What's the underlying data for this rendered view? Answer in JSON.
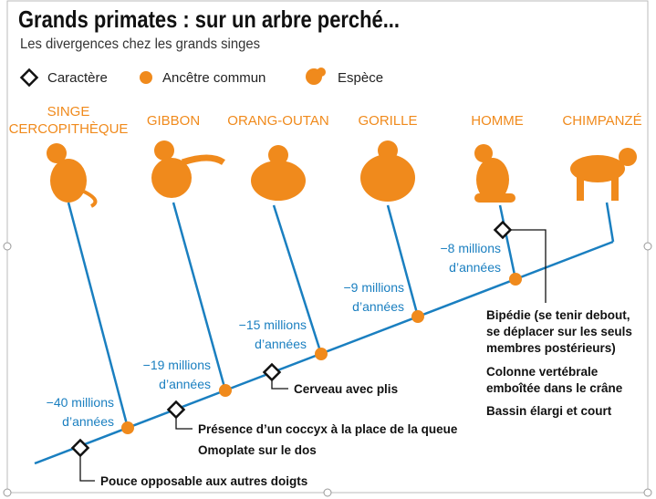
{
  "header": {
    "title": "Grands primates : sur un arbre perché...",
    "subtitle": "Les divergences chez les grands singes"
  },
  "legend": [
    "Caractère",
    "Ancêtre commun",
    "Espèce"
  ],
  "species": [
    {
      "label": [
        "SINGE",
        "CERCOPITHÈQUE"
      ]
    },
    {
      "label": [
        "GIBBON"
      ]
    },
    {
      "label": [
        "ORANG-OUTAN"
      ]
    },
    {
      "label": [
        "GORILLE"
      ]
    },
    {
      "label": [
        "HOMME"
      ]
    },
    {
      "label": [
        "CHIMPANZÉ"
      ]
    }
  ],
  "nodes": [
    {
      "date": [
        "−40 millions",
        "d’années"
      ]
    },
    {
      "date": [
        "−19 millions",
        "d’années"
      ]
    },
    {
      "date": [
        "−15 millions",
        "d’années"
      ]
    },
    {
      "date": [
        "−9 millions",
        "d’années"
      ]
    },
    {
      "date": [
        "−8 millions",
        "d’années"
      ]
    }
  ],
  "characters": [
    {
      "lines": [
        "Pouce opposable aux autres doigts"
      ]
    },
    {
      "lines": [
        "Présence d’un coccyx à la place de la queue",
        "Omoplate sur le dos"
      ]
    },
    {
      "lines": [
        "Cerveau avec plis"
      ]
    },
    {
      "lines": [
        "Bipédie (se tenir debout,",
        "se déplacer sur les seuls",
        "membres postérieurs)",
        "Colonne vertébrale",
        "emboîtée dans le crâne",
        "Bassin élargi et court"
      ]
    }
  ]
}
